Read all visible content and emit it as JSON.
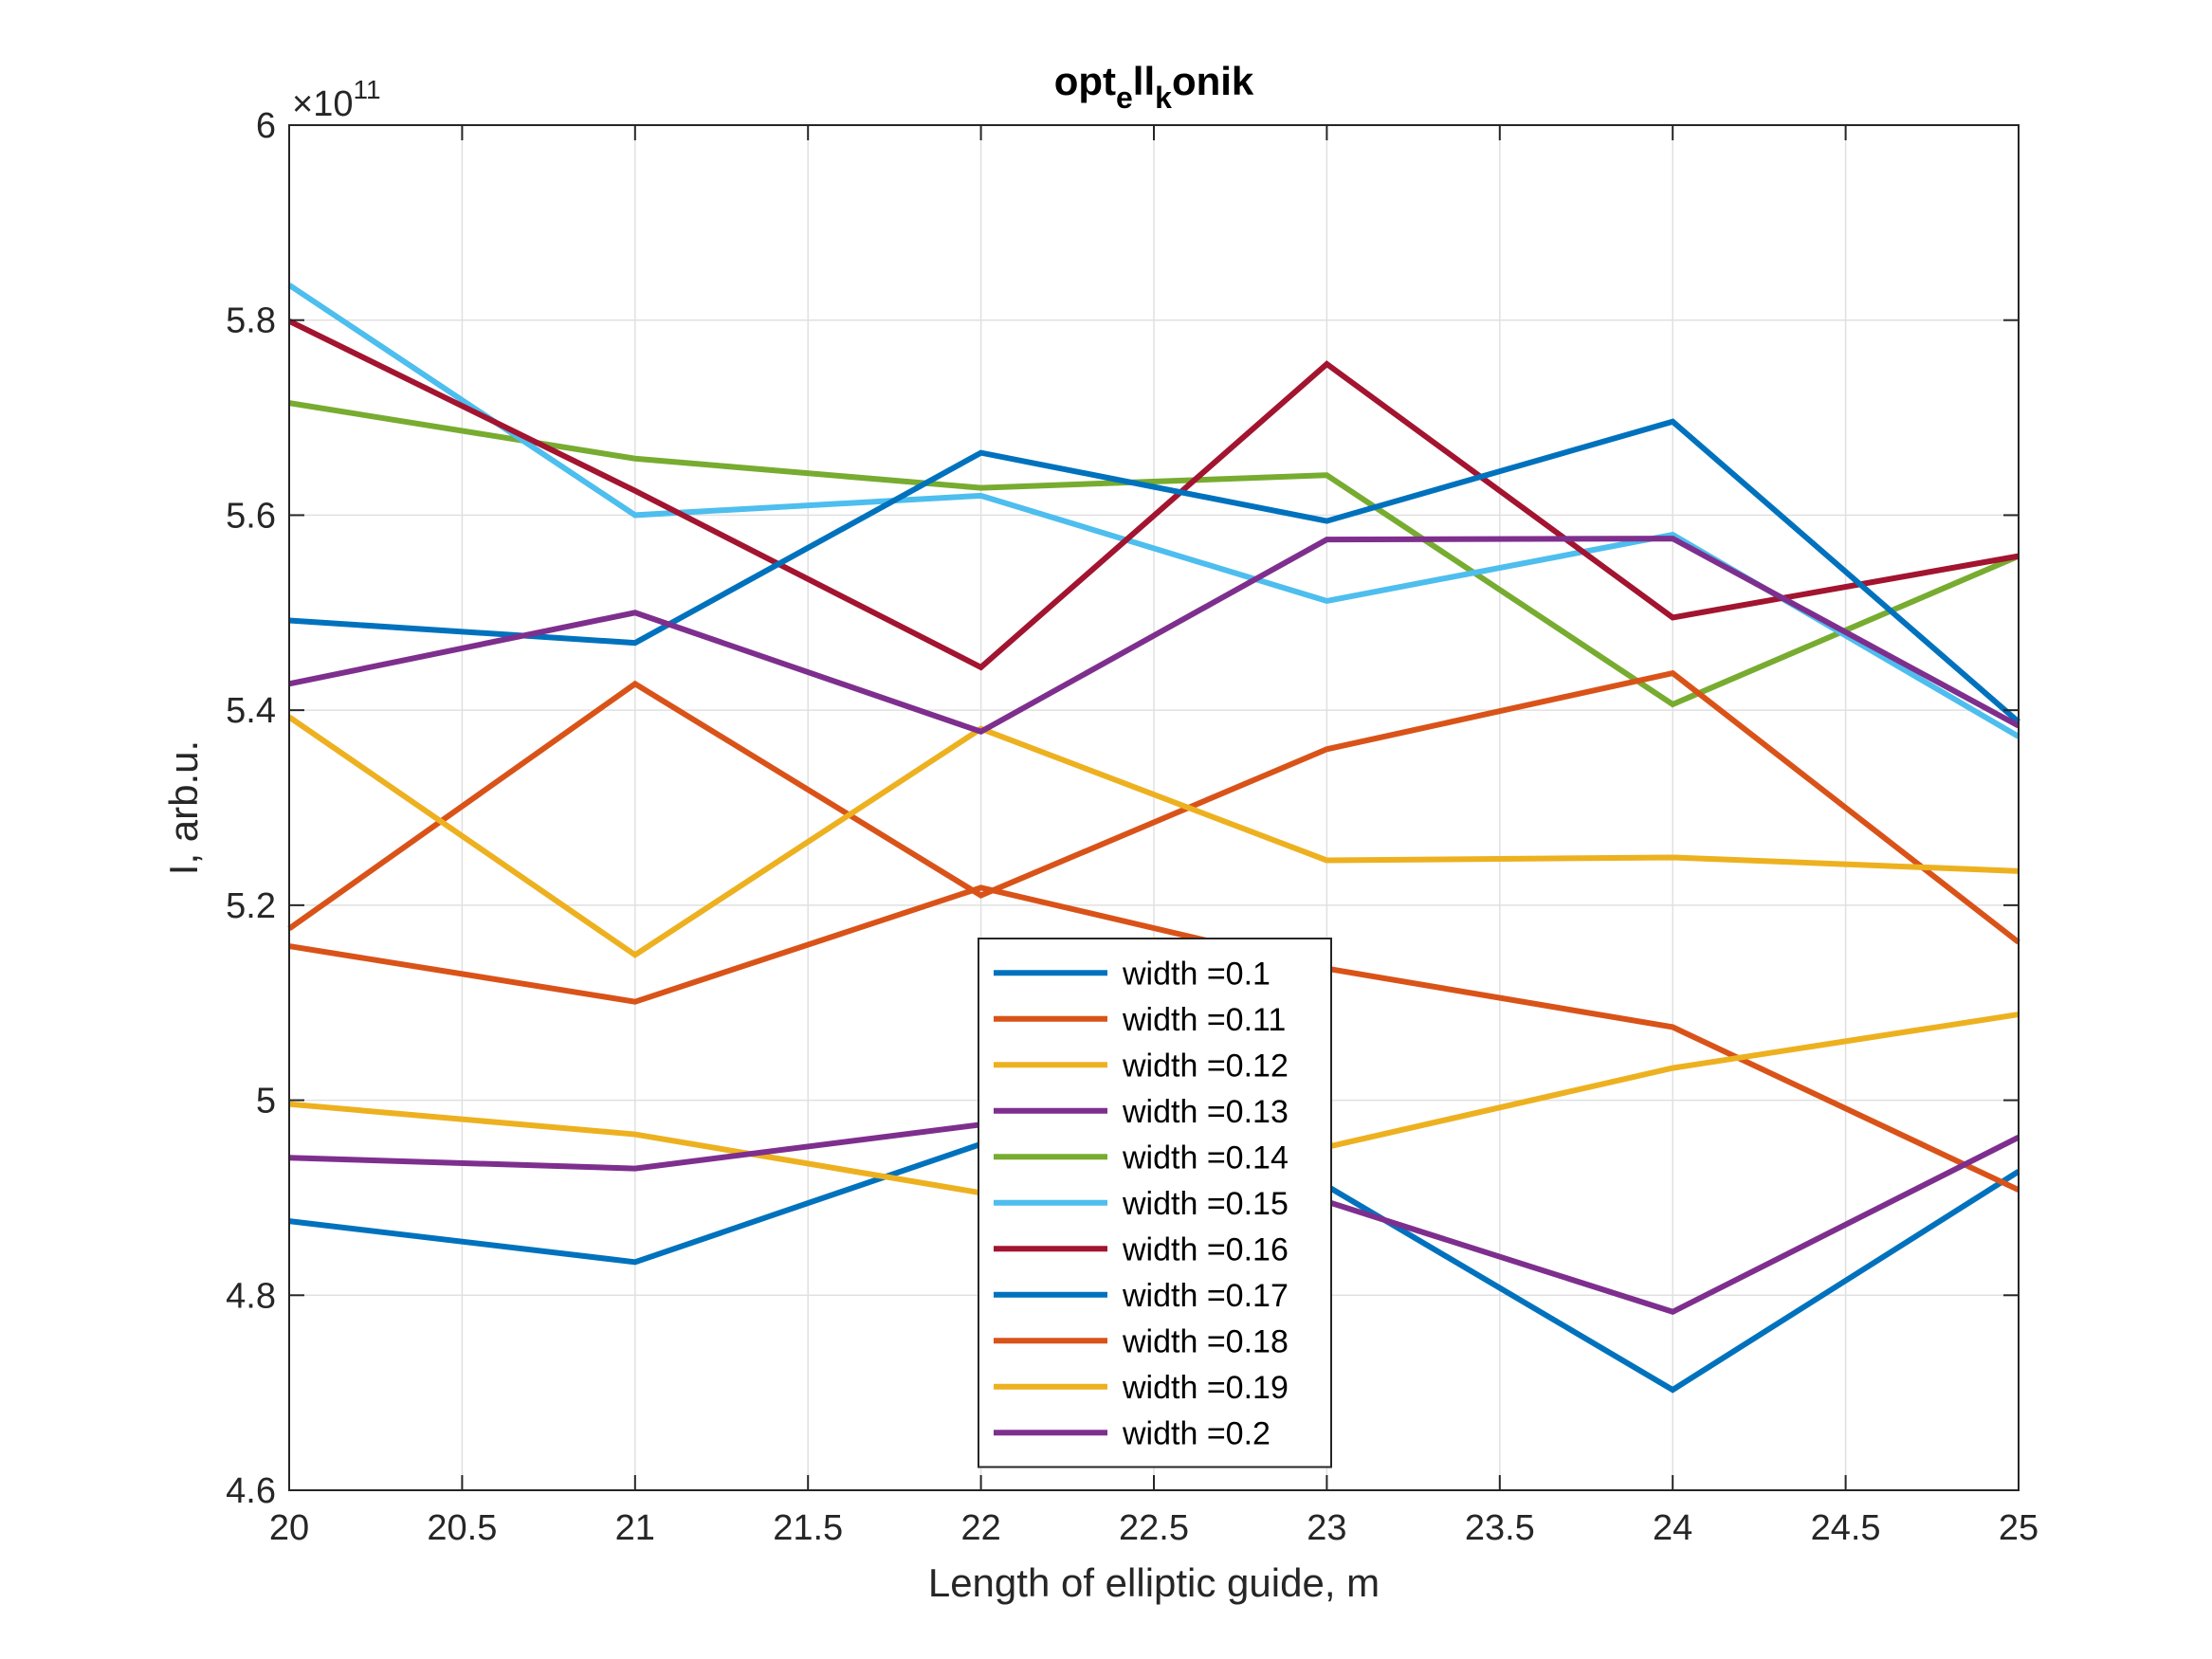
{
  "chart_data": {
    "type": "line",
    "title": {
      "base": "opt",
      "sub1": "e",
      "mid": "ll",
      "sub2": "k",
      "end": "onik"
    },
    "xlabel": "Length of elliptic guide, m",
    "ylabel": "I, arb.u.",
    "exponent": {
      "base": "×10",
      "power": "11"
    },
    "xlim": [
      20,
      25
    ],
    "ylim": [
      4.6,
      6.0
    ],
    "xticks": [
      "20",
      "20.5",
      "21",
      "21.5",
      "22",
      "22.5",
      "23",
      "23.5",
      "24",
      "24.5",
      "25"
    ],
    "yticks": [
      "4.6",
      "4.8",
      "5",
      "5.2",
      "5.4",
      "5.6",
      "5.8",
      "6"
    ],
    "grid": true,
    "legend_position": "center-bottom",
    "x": [
      20,
      21,
      22,
      23,
      24,
      25
    ],
    "series": [
      {
        "name": "width =0.1",
        "color": "#0072BD",
        "values": [
          4.876,
          4.834,
          4.955,
          4.912,
          4.703,
          4.927
        ]
      },
      {
        "name": "width =0.11",
        "color": "#D95319",
        "values": [
          5.158,
          5.101,
          5.218,
          5.135,
          5.075,
          4.908
        ]
      },
      {
        "name": "width =0.12",
        "color": "#EDB120",
        "values": [
          4.996,
          4.965,
          4.905,
          4.952,
          5.033,
          5.088
        ]
      },
      {
        "name": "width =0.13",
        "color": "#7E2F8E",
        "values": [
          4.941,
          4.93,
          4.975,
          4.896,
          4.783,
          4.962
        ]
      },
      {
        "name": "width =0.14",
        "color": "#77AC30",
        "values": [
          5.715,
          5.658,
          5.628,
          5.641,
          5.406,
          5.558
        ]
      },
      {
        "name": "width =0.15",
        "color": "#4DBEEE",
        "values": [
          5.836,
          5.6,
          5.62,
          5.512,
          5.58,
          5.373
        ]
      },
      {
        "name": "width =0.16",
        "color": "#A2142F",
        "values": [
          5.799,
          5.625,
          5.444,
          5.755,
          5.495,
          5.558
        ]
      },
      {
        "name": "width =0.17",
        "color": "#0072BD",
        "values": [
          5.492,
          5.469,
          5.664,
          5.594,
          5.696,
          5.388
        ]
      },
      {
        "name": "width =0.18",
        "color": "#D95319",
        "values": [
          5.176,
          5.427,
          5.21,
          5.36,
          5.438,
          5.162
        ]
      },
      {
        "name": "width =0.19",
        "color": "#EDB120",
        "values": [
          5.393,
          5.149,
          5.381,
          5.246,
          5.249,
          5.235
        ]
      },
      {
        "name": "width =0.2",
        "color": "#7E2F8E",
        "values": [
          5.427,
          5.5,
          5.378,
          5.575,
          5.576,
          5.384
        ]
      }
    ]
  }
}
